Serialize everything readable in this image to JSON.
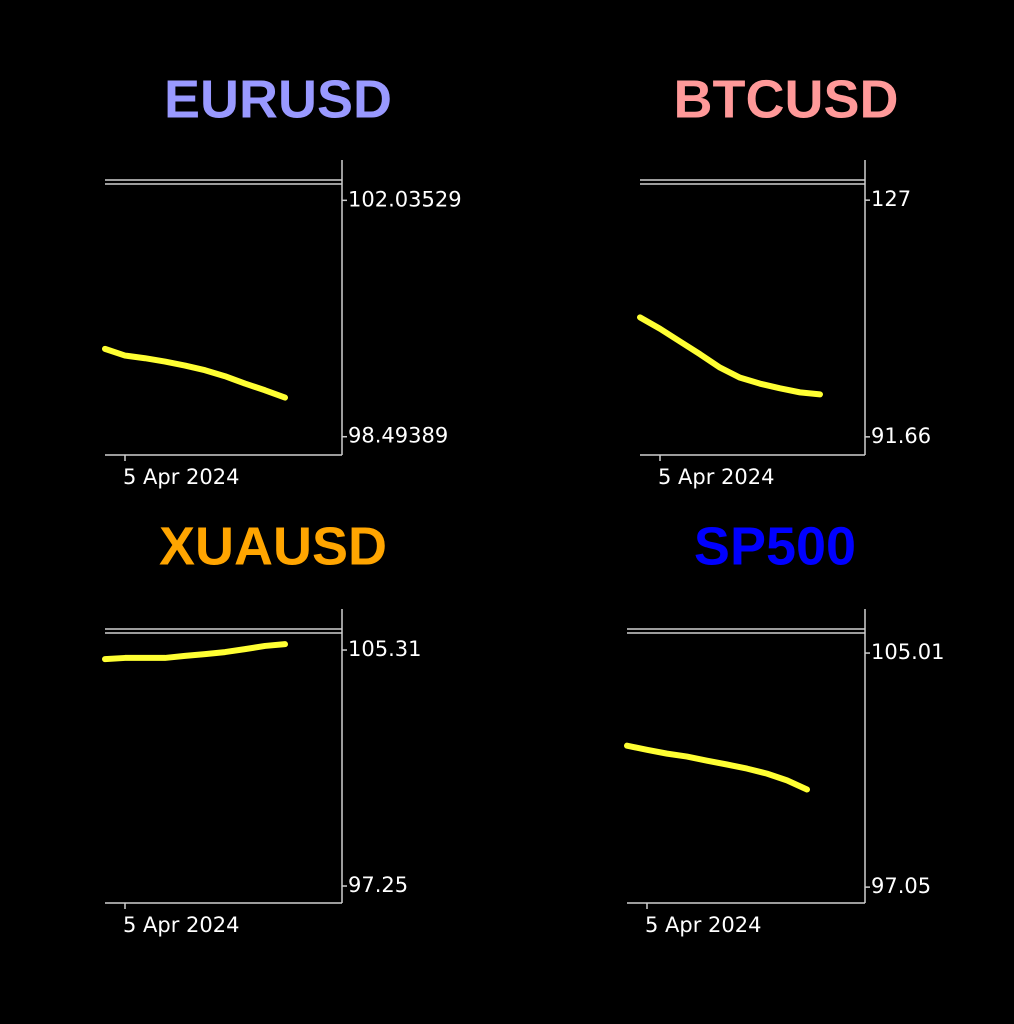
{
  "chart_data": [
    {
      "type": "line",
      "title": "EURUSD",
      "title_color": "#9999ff",
      "categories": [
        null,
        "5 Apr 2024",
        null,
        null,
        null,
        null,
        null,
        null,
        null,
        null
      ],
      "values": [
        99.81,
        99.71,
        99.67,
        99.62,
        99.56,
        99.49,
        99.4,
        99.29,
        99.19,
        99.08
      ],
      "color": "#ffff33",
      "ylim": [
        98.22,
        102.31
      ],
      "yticks": [
        98.49389,
        102.03529
      ]
    },
    {
      "type": "line",
      "title": "BTCUSD",
      "title_color": "#ff9999",
      "categories": [
        null,
        "5 Apr 2024",
        null,
        null,
        null,
        null,
        null,
        null,
        null,
        null
      ],
      "values": [
        109.5,
        107.8,
        105.9,
        104.0,
        102.0,
        100.5,
        99.6,
        98.9,
        98.3,
        98.0
      ],
      "color": "#ffff33",
      "ylim": [
        88.95,
        129.71
      ],
      "yticks": [
        91.66,
        127
      ]
    },
    {
      "type": "line",
      "title": "XUAUSD",
      "title_color": "#ffa500",
      "categories": [
        null,
        "5 Apr 2024",
        null,
        null,
        null,
        null,
        null,
        null,
        null,
        null
      ],
      "values": [
        105.0,
        105.04,
        105.04,
        105.04,
        105.11,
        105.17,
        105.24,
        105.34,
        105.45,
        105.51
      ],
      "color": "#ffff33",
      "ylim": [
        96.67,
        105.96
      ],
      "yticks": [
        97.25,
        105.31
      ]
    },
    {
      "type": "line",
      "title": "SP500",
      "title_color": "#0000ff",
      "categories": [
        null,
        "5 Apr 2024",
        null,
        null,
        null,
        null,
        null,
        null,
        null,
        null
      ],
      "values": [
        101.86,
        101.72,
        101.59,
        101.49,
        101.35,
        101.22,
        101.08,
        100.91,
        100.68,
        100.37
      ],
      "color": "#ffff33",
      "ylim": [
        96.51,
        105.76
      ],
      "yticks": [
        97.05,
        105.01
      ]
    }
  ]
}
